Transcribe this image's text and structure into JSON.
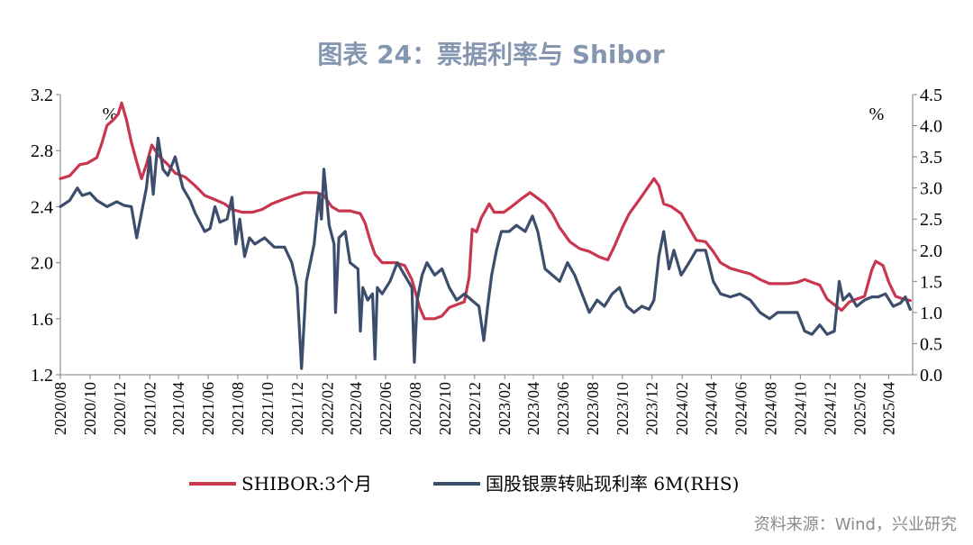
{
  "title": "图表 24：票据利率与 Shibor",
  "source": "资料来源：Wind，兴业研究",
  "colors": {
    "shibor": "#c8374f",
    "bill": "#3c4e6c",
    "title": "#8496b0",
    "axis": "#7f7f7f"
  },
  "chart_data": {
    "type": "line",
    "left_axis": {
      "unit": "%",
      "ylim": [
        1.2,
        3.2
      ],
      "ticks": [
        "1.2",
        "1.6",
        "2.0",
        "2.4",
        "2.8",
        "3.2"
      ]
    },
    "right_axis": {
      "unit": "%",
      "ylim": [
        0.0,
        4.5
      ],
      "ticks": [
        "0.0",
        "0.5",
        "1.0",
        "1.5",
        "2.0",
        "2.5",
        "3.0",
        "3.5",
        "4.0",
        "4.5"
      ]
    },
    "x_ticks": [
      "2020/08",
      "2020/10",
      "2020/12",
      "2021/02",
      "2021/04",
      "2021/06",
      "2021/08",
      "2021/10",
      "2021/12",
      "2022/02",
      "2022/04",
      "2022/06",
      "2022/08",
      "2022/10",
      "2022/12",
      "2023/02",
      "2023/04",
      "2023/06",
      "2023/08",
      "2023/10",
      "2023/12",
      "2024/02",
      "2024/04",
      "2024/06",
      "2024/08",
      "2024/10",
      "2024/12",
      "2025/02",
      "2025/04"
    ],
    "legend_position": "bottom",
    "grid": false,
    "series": [
      {
        "name": "SHIBOR:3个月",
        "axis": "left",
        "points": [
          [
            "2020/08/01",
            2.6
          ],
          [
            "2020/08/20",
            2.62
          ],
          [
            "2020/09/10",
            2.7
          ],
          [
            "2020/09/25",
            2.71
          ],
          [
            "2020/10/15",
            2.75
          ],
          [
            "2020/10/25",
            2.85
          ],
          [
            "2020/11/05",
            2.98
          ],
          [
            "2020/11/18",
            3.02
          ],
          [
            "2020/11/28",
            3.06
          ],
          [
            "2020/12/05",
            3.14
          ],
          [
            "2020/12/15",
            3.02
          ],
          [
            "2020/12/25",
            2.86
          ],
          [
            "2021/01/05",
            2.72
          ],
          [
            "2021/01/15",
            2.6
          ],
          [
            "2021/01/25",
            2.7
          ],
          [
            "2021/02/05",
            2.84
          ],
          [
            "2021/02/20",
            2.76
          ],
          [
            "2021/03/10",
            2.7
          ],
          [
            "2021/03/25",
            2.64
          ],
          [
            "2021/04/15",
            2.61
          ],
          [
            "2021/05/05",
            2.55
          ],
          [
            "2021/05/25",
            2.48
          ],
          [
            "2021/06/15",
            2.45
          ],
          [
            "2021/07/05",
            2.42
          ],
          [
            "2021/07/20",
            2.38
          ],
          [
            "2021/08/10",
            2.36
          ],
          [
            "2021/08/31",
            2.36
          ],
          [
            "2021/09/20",
            2.38
          ],
          [
            "2021/10/10",
            2.42
          ],
          [
            "2021/11/01",
            2.45
          ],
          [
            "2021/11/25",
            2.48
          ],
          [
            "2021/12/15",
            2.5
          ],
          [
            "2022/01/10",
            2.5
          ],
          [
            "2022/01/25",
            2.48
          ],
          [
            "2022/02/10",
            2.4
          ],
          [
            "2022/02/25",
            2.37
          ],
          [
            "2022/03/20",
            2.37
          ],
          [
            "2022/04/10",
            2.35
          ],
          [
            "2022/04/20",
            2.28
          ],
          [
            "2022/05/01",
            2.15
          ],
          [
            "2022/05/10",
            2.06
          ],
          [
            "2022/05/25",
            2.0
          ],
          [
            "2022/06/20",
            2.0
          ],
          [
            "2022/07/10",
            1.98
          ],
          [
            "2022/07/25",
            1.88
          ],
          [
            "2022/08/10",
            1.68
          ],
          [
            "2022/08/20",
            1.6
          ],
          [
            "2022/09/10",
            1.6
          ],
          [
            "2022/09/25",
            1.62
          ],
          [
            "2022/10/10",
            1.68
          ],
          [
            "2022/10/25",
            1.7
          ],
          [
            "2022/11/10",
            1.72
          ],
          [
            "2022/11/20",
            1.9
          ],
          [
            "2022/11/26",
            2.24
          ],
          [
            "2022/12/05",
            2.22
          ],
          [
            "2022/12/15",
            2.32
          ],
          [
            "2022/12/31",
            2.42
          ],
          [
            "2023/01/10",
            2.36
          ],
          [
            "2023/01/30",
            2.36
          ],
          [
            "2023/02/15",
            2.4
          ],
          [
            "2023/03/05",
            2.45
          ],
          [
            "2023/03/25",
            2.5
          ],
          [
            "2023/04/10",
            2.46
          ],
          [
            "2023/04/25",
            2.42
          ],
          [
            "2023/05/10",
            2.35
          ],
          [
            "2023/05/25",
            2.25
          ],
          [
            "2023/06/15",
            2.15
          ],
          [
            "2023/07/05",
            2.1
          ],
          [
            "2023/07/25",
            2.08
          ],
          [
            "2023/08/15",
            2.04
          ],
          [
            "2023/09/01",
            2.02
          ],
          [
            "2023/09/15",
            2.12
          ],
          [
            "2023/10/01",
            2.25
          ],
          [
            "2023/10/15",
            2.35
          ],
          [
            "2023/11/05",
            2.45
          ],
          [
            "2023/11/25",
            2.55
          ],
          [
            "2023/12/05",
            2.6
          ],
          [
            "2023/12/15",
            2.55
          ],
          [
            "2023/12/25",
            2.42
          ],
          [
            "2024/01/10",
            2.4
          ],
          [
            "2024/01/30",
            2.35
          ],
          [
            "2024/02/15",
            2.25
          ],
          [
            "2024/03/01",
            2.16
          ],
          [
            "2024/03/20",
            2.15
          ],
          [
            "2024/04/05",
            2.08
          ],
          [
            "2024/04/20",
            2.0
          ],
          [
            "2024/05/10",
            1.96
          ],
          [
            "2024/05/30",
            1.94
          ],
          [
            "2024/06/20",
            1.92
          ],
          [
            "2024/07/10",
            1.88
          ],
          [
            "2024/07/30",
            1.85
          ],
          [
            "2024/08/15",
            1.85
          ],
          [
            "2024/09/05",
            1.85
          ],
          [
            "2024/09/25",
            1.86
          ],
          [
            "2024/10/10",
            1.88
          ],
          [
            "2024/10/25",
            1.86
          ],
          [
            "2024/11/10",
            1.84
          ],
          [
            "2024/11/25",
            1.74
          ],
          [
            "2024/12/10",
            1.7
          ],
          [
            "2024/12/25",
            1.66
          ],
          [
            "2025/01/10",
            1.72
          ],
          [
            "2025/01/25",
            1.74
          ],
          [
            "2025/02/10",
            1.76
          ],
          [
            "2025/02/25",
            1.95
          ],
          [
            "2025/03/05",
            2.01
          ],
          [
            "2025/03/20",
            1.98
          ],
          [
            "2025/04/01",
            1.86
          ],
          [
            "2025/04/15",
            1.76
          ],
          [
            "2025/05/01",
            1.74
          ],
          [
            "2025/05/15",
            1.73
          ]
        ]
      },
      {
        "name": "国股银票转贴现利率 6M(RHS)",
        "axis": "right",
        "points": [
          [
            "2020/08/01",
            2.7
          ],
          [
            "2020/08/20",
            2.8
          ],
          [
            "2020/09/05",
            3.0
          ],
          [
            "2020/09/15",
            2.88
          ],
          [
            "2020/10/01",
            2.92
          ],
          [
            "2020/10/15",
            2.8
          ],
          [
            "2020/11/05",
            2.7
          ],
          [
            "2020/11/25",
            2.78
          ],
          [
            "2020/12/10",
            2.72
          ],
          [
            "2020/12/25",
            2.7
          ],
          [
            "2021/01/05",
            2.2
          ],
          [
            "2021/01/15",
            2.6
          ],
          [
            "2021/01/25",
            3.0
          ],
          [
            "2021/02/01",
            3.5
          ],
          [
            "2021/02/08",
            2.9
          ],
          [
            "2021/02/18",
            3.8
          ],
          [
            "2021/02/28",
            3.3
          ],
          [
            "2021/03/10",
            3.2
          ],
          [
            "2021/03/25",
            3.5
          ],
          [
            "2021/04/10",
            3.0
          ],
          [
            "2021/04/25",
            2.8
          ],
          [
            "2021/05/05",
            2.6
          ],
          [
            "2021/05/15",
            2.45
          ],
          [
            "2021/05/25",
            2.3
          ],
          [
            "2021/06/05",
            2.35
          ],
          [
            "2021/06/15",
            2.7
          ],
          [
            "2021/06/25",
            2.45
          ],
          [
            "2021/07/10",
            2.5
          ],
          [
            "2021/07/20",
            2.85
          ],
          [
            "2021/07/28",
            2.1
          ],
          [
            "2021/08/05",
            2.5
          ],
          [
            "2021/08/15",
            1.9
          ],
          [
            "2021/08/25",
            2.2
          ],
          [
            "2021/09/05",
            2.1
          ],
          [
            "2021/09/25",
            2.2
          ],
          [
            "2021/10/15",
            2.05
          ],
          [
            "2021/11/05",
            2.05
          ],
          [
            "2021/11/20",
            1.8
          ],
          [
            "2021/12/01",
            1.4
          ],
          [
            "2021/12/10",
            0.1
          ],
          [
            "2021/12/20",
            1.5
          ],
          [
            "2022/01/05",
            2.1
          ],
          [
            "2022/01/15",
            2.9
          ],
          [
            "2022/01/20",
            2.5
          ],
          [
            "2022/01/25",
            3.3
          ],
          [
            "2022/02/05",
            2.4
          ],
          [
            "2022/02/15",
            2.1
          ],
          [
            "2022/02/18",
            1.0
          ],
          [
            "2022/02/25",
            2.2
          ],
          [
            "2022/03/10",
            2.3
          ],
          [
            "2022/03/20",
            1.8
          ],
          [
            "2022/04/05",
            1.7
          ],
          [
            "2022/04/10",
            0.7
          ],
          [
            "2022/04/15",
            1.4
          ],
          [
            "2022/04/25",
            1.2
          ],
          [
            "2022/05/05",
            1.3
          ],
          [
            "2022/05/10",
            0.25
          ],
          [
            "2022/05/15",
            1.4
          ],
          [
            "2022/05/25",
            1.3
          ],
          [
            "2022/06/10",
            1.5
          ],
          [
            "2022/06/25",
            1.8
          ],
          [
            "2022/07/10",
            1.6
          ],
          [
            "2022/07/25",
            1.4
          ],
          [
            "2022/07/30",
            0.2
          ],
          [
            "2022/08/05",
            1.2
          ],
          [
            "2022/08/15",
            1.6
          ],
          [
            "2022/08/25",
            1.8
          ],
          [
            "2022/09/10",
            1.6
          ],
          [
            "2022/09/25",
            1.7
          ],
          [
            "2022/10/10",
            1.4
          ],
          [
            "2022/10/25",
            1.2
          ],
          [
            "2022/11/10",
            1.3
          ],
          [
            "2022/11/25",
            1.2
          ],
          [
            "2022/12/10",
            1.1
          ],
          [
            "2022/12/20",
            0.55
          ],
          [
            "2022/12/28",
            1.1
          ],
          [
            "2023/01/05",
            1.6
          ],
          [
            "2023/01/15",
            2.0
          ],
          [
            "2023/01/25",
            2.3
          ],
          [
            "2023/02/10",
            2.3
          ],
          [
            "2023/02/25",
            2.4
          ],
          [
            "2023/03/15",
            2.3
          ],
          [
            "2023/03/30",
            2.55
          ],
          [
            "2023/04/10",
            2.3
          ],
          [
            "2023/04/25",
            1.7
          ],
          [
            "2023/05/10",
            1.6
          ],
          [
            "2023/05/25",
            1.5
          ],
          [
            "2023/06/10",
            1.8
          ],
          [
            "2023/06/25",
            1.6
          ],
          [
            "2023/07/10",
            1.3
          ],
          [
            "2023/07/25",
            1.0
          ],
          [
            "2023/08/10",
            1.2
          ],
          [
            "2023/08/25",
            1.1
          ],
          [
            "2023/09/10",
            1.3
          ],
          [
            "2023/09/25",
            1.4
          ],
          [
            "2023/10/10",
            1.1
          ],
          [
            "2023/10/25",
            1.0
          ],
          [
            "2023/11/10",
            1.1
          ],
          [
            "2023/11/25",
            1.05
          ],
          [
            "2023/12/05",
            1.2
          ],
          [
            "2023/12/15",
            1.9
          ],
          [
            "2023/12/25",
            2.3
          ],
          [
            "2024/01/05",
            1.7
          ],
          [
            "2024/01/15",
            2.0
          ],
          [
            "2024/01/30",
            1.6
          ],
          [
            "2024/02/15",
            1.8
          ],
          [
            "2024/03/01",
            2.0
          ],
          [
            "2024/03/20",
            2.0
          ],
          [
            "2024/04/05",
            1.5
          ],
          [
            "2024/04/20",
            1.3
          ],
          [
            "2024/05/10",
            1.25
          ],
          [
            "2024/05/30",
            1.3
          ],
          [
            "2024/06/20",
            1.2
          ],
          [
            "2024/07/10",
            1.0
          ],
          [
            "2024/07/30",
            0.9
          ],
          [
            "2024/08/15",
            1.0
          ],
          [
            "2024/09/05",
            1.0
          ],
          [
            "2024/09/25",
            1.0
          ],
          [
            "2024/10/10",
            0.7
          ],
          [
            "2024/10/25",
            0.65
          ],
          [
            "2024/11/10",
            0.8
          ],
          [
            "2024/11/25",
            0.65
          ],
          [
            "2024/12/10",
            0.7
          ],
          [
            "2024/12/20",
            1.5
          ],
          [
            "2024/12/28",
            1.2
          ],
          [
            "2025/01/10",
            1.3
          ],
          [
            "2025/01/25",
            1.1
          ],
          [
            "2025/02/10",
            1.2
          ],
          [
            "2025/02/25",
            1.25
          ],
          [
            "2025/03/10",
            1.25
          ],
          [
            "2025/03/25",
            1.3
          ],
          [
            "2025/04/10",
            1.1
          ],
          [
            "2025/04/25",
            1.15
          ],
          [
            "2025/05/05",
            1.25
          ],
          [
            "2025/05/15",
            1.05
          ]
        ]
      }
    ]
  }
}
